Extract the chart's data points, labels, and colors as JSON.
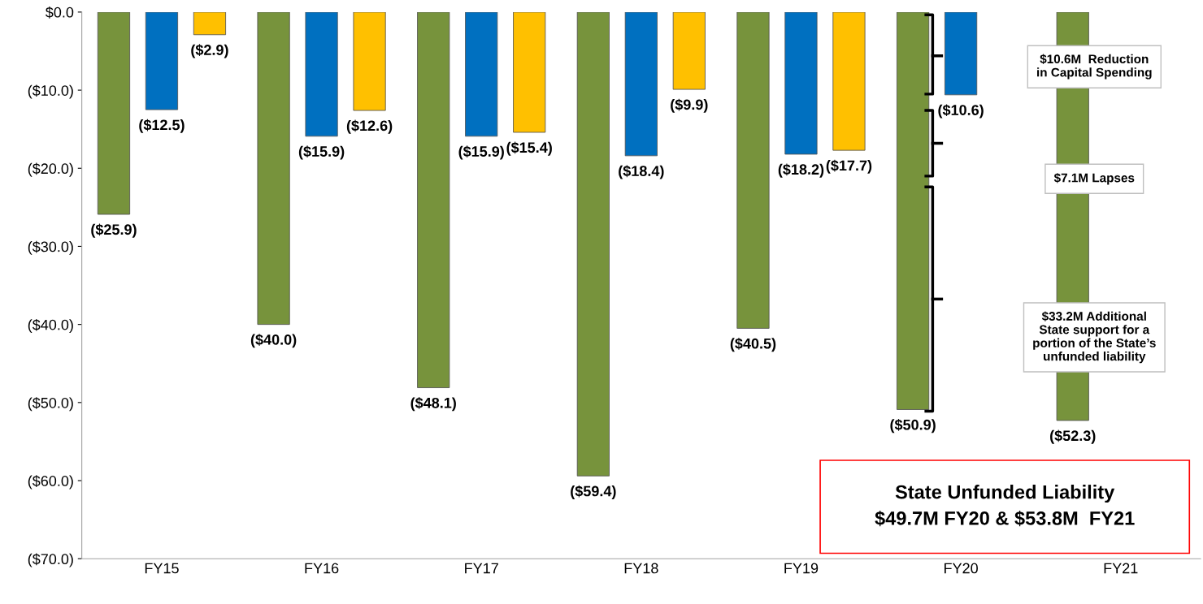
{
  "chart_data": {
    "type": "bar",
    "categories": [
      "FY15",
      "FY16",
      "FY17",
      "FY18",
      "FY19",
      "FY20",
      "FY21"
    ],
    "series": [
      {
        "color": "#77933c",
        "values": [
          -25.9,
          -40.0,
          -48.1,
          -59.4,
          -40.5,
          -50.9,
          -52.3
        ],
        "value_labels": [
          "($25.9)",
          "($40.0)",
          "($48.1)",
          "($59.4)",
          "($40.5)",
          "($50.9)",
          "($52.3)"
        ]
      },
      {
        "color": "#0070c0",
        "values": [
          -12.5,
          -15.9,
          -15.9,
          -18.4,
          -18.2,
          -10.6,
          null
        ],
        "value_labels": [
          "($12.5)",
          "($15.9)",
          "($15.9)",
          "($18.4)",
          "($18.2)",
          "($10.6)",
          null
        ]
      },
      {
        "color": "#ffc000",
        "values": [
          -2.9,
          -12.6,
          -15.4,
          -9.9,
          -17.7,
          null,
          null
        ],
        "value_labels": [
          "($2.9)",
          "($12.6)",
          "($15.4)",
          "($9.9)",
          "($17.7)",
          null,
          null
        ]
      }
    ],
    "ylim": [
      -70,
      0
    ],
    "yticks": [
      {
        "value": 0,
        "label": "$0.0"
      },
      {
        "value": -10,
        "label": "($10.0)"
      },
      {
        "value": -20,
        "label": "($20.0)"
      },
      {
        "value": -30,
        "label": "($30.0)"
      },
      {
        "value": -40,
        "label": "($40.0)"
      },
      {
        "value": -50,
        "label": "($50.0)"
      },
      {
        "value": -60,
        "label": "($60.0)"
      },
      {
        "value": -70,
        "label": "($70.0)"
      }
    ],
    "grid": false,
    "annotations": [
      "$10.6M  Reduction\nin Capital Spending",
      "$7.1M Lapses",
      "$33.2M Additional\nState support for a\nportion of the State’s\nunfunded liability",
      "State Unfunded Liability\n$49.7M FY20 & $53.8M  FY21"
    ]
  }
}
